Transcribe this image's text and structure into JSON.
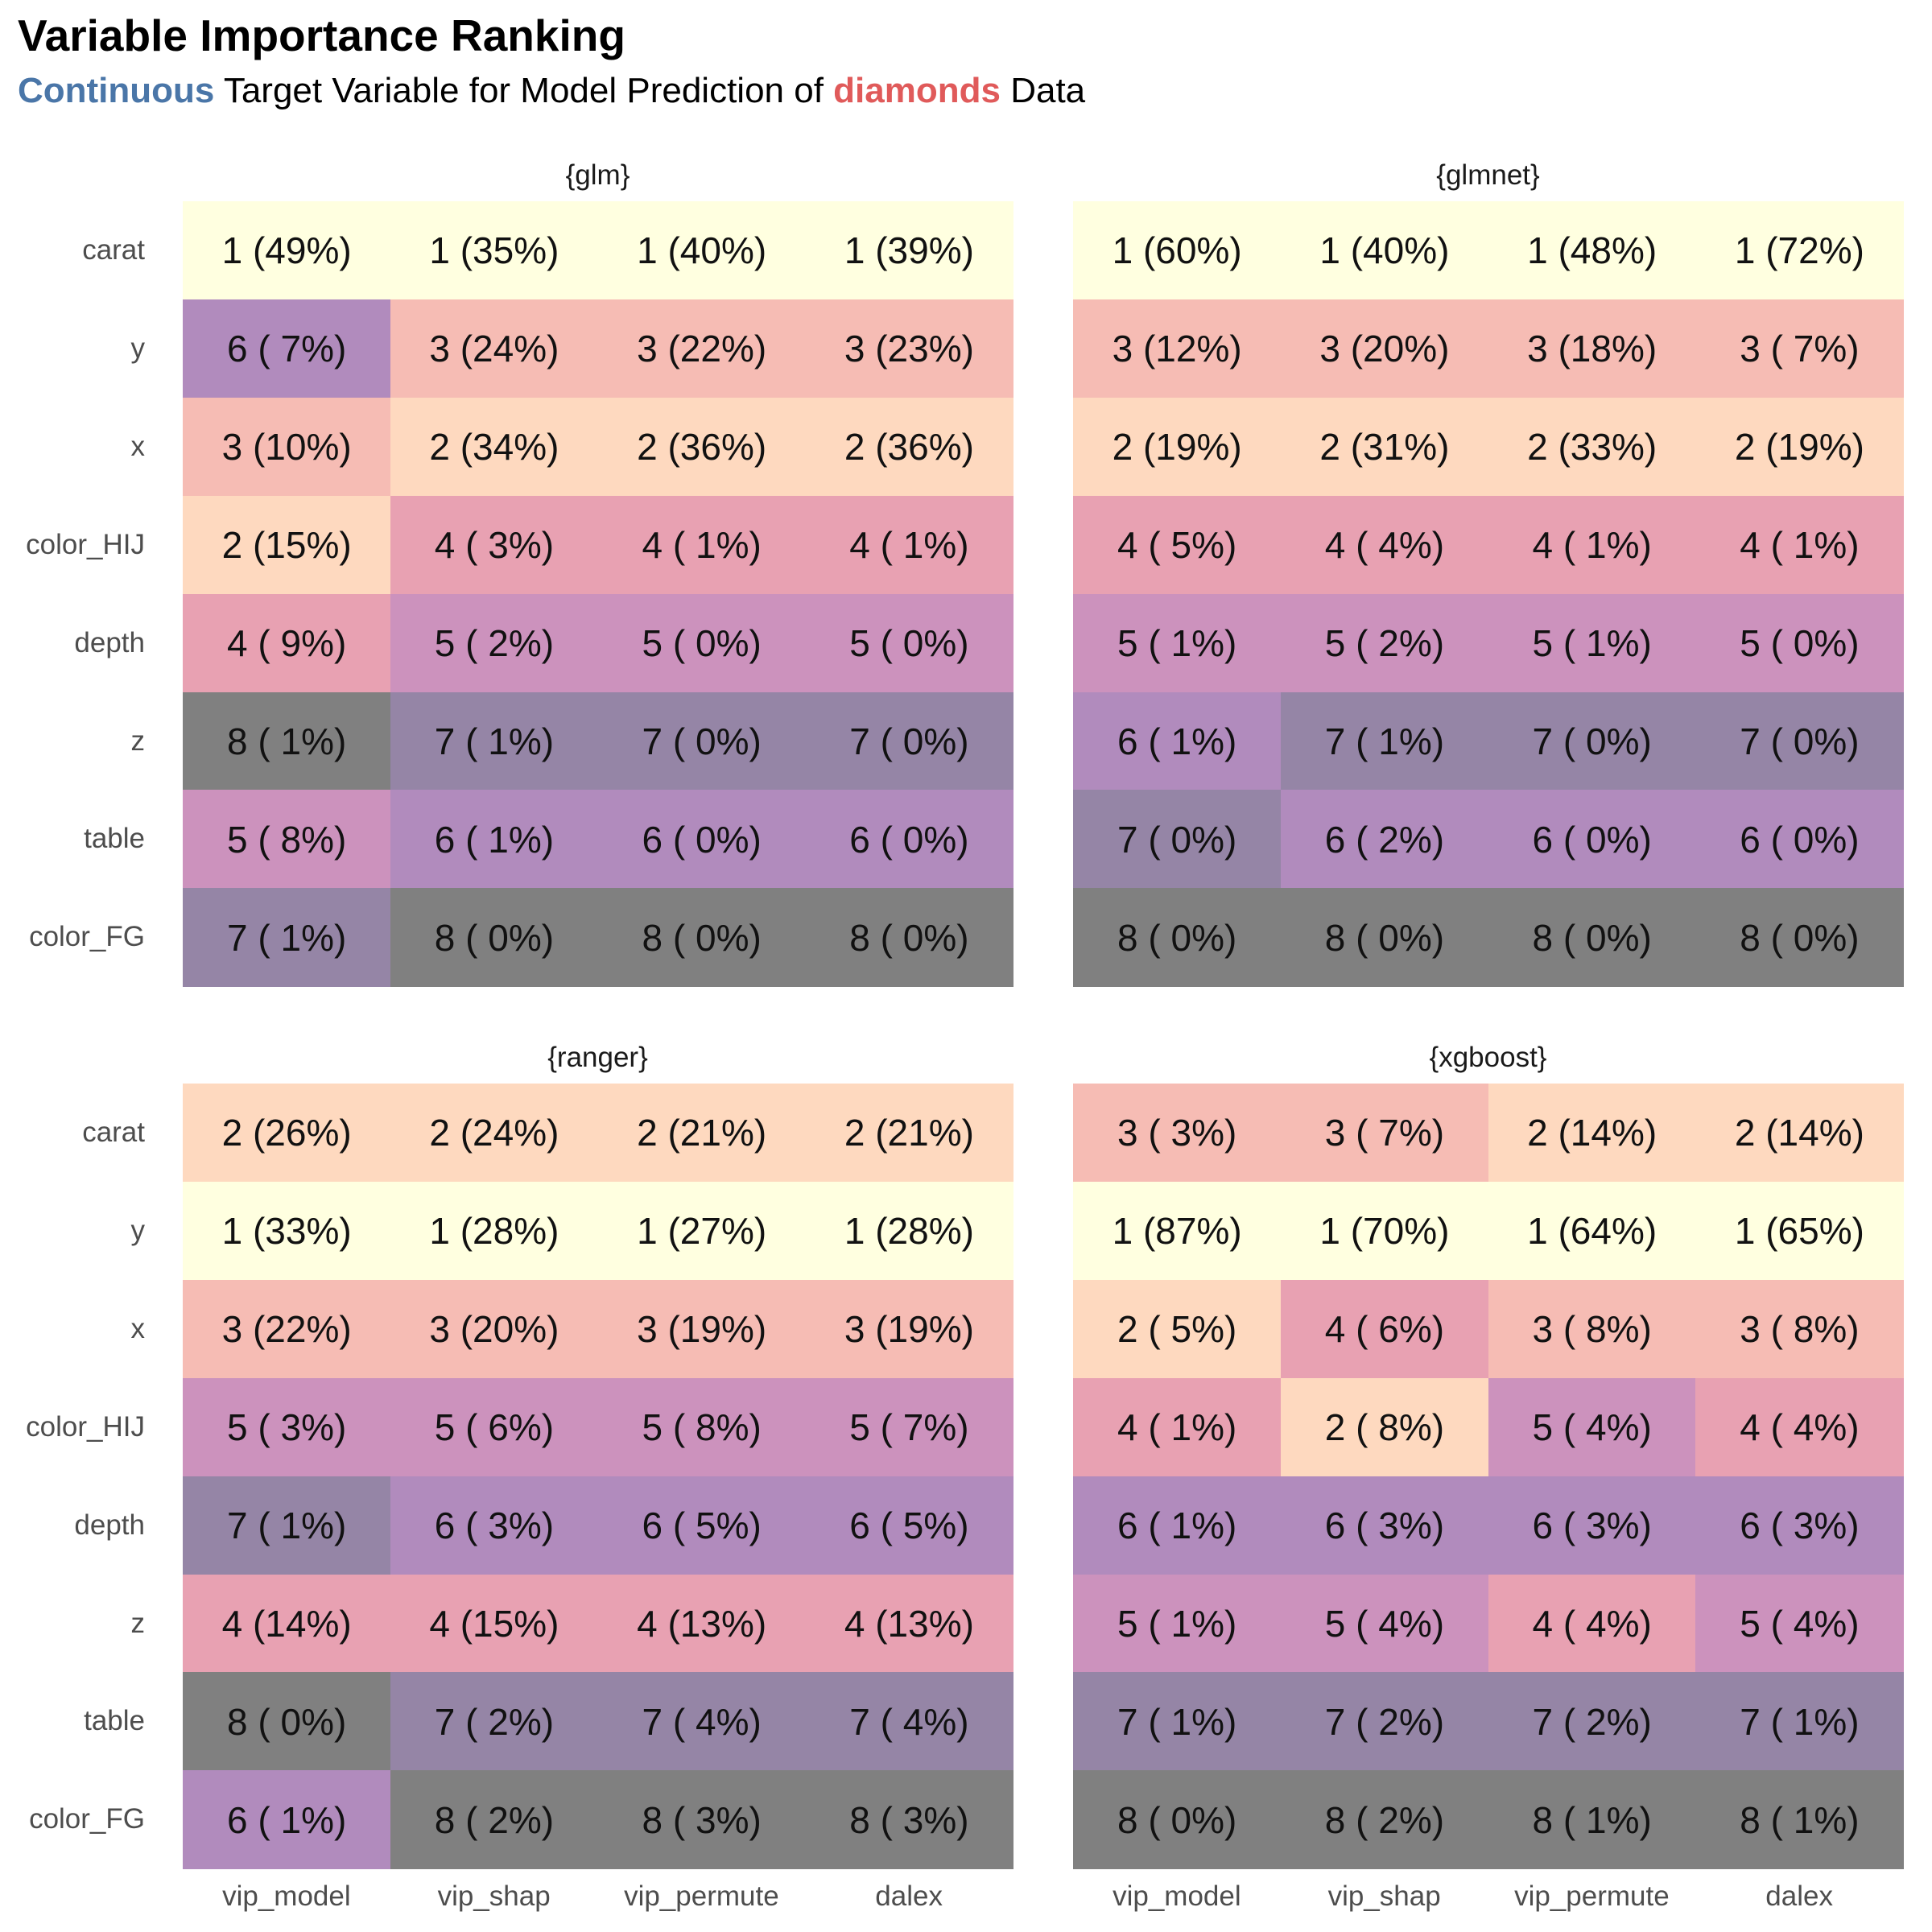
{
  "title": "Variable Importance Ranking",
  "subtitle": {
    "part1": "Continuous",
    "part2": " Target Variable for Model Prediction of ",
    "part3": "diamonds",
    "part4": " Data"
  },
  "colors": {
    "continuous": "#4a76a8",
    "diamonds": "#e05a5a",
    "rank1": "#ffffe0",
    "rank2": "#fed9bf",
    "rank3": "#f6bcb4",
    "rank4": "#e8a1b2",
    "rank5": "#cc92bd",
    "rank6": "#b18bbd",
    "rank7": "#9585a6",
    "rank8": "#808080"
  },
  "chart_data": {
    "type": "heatmap",
    "x_categories": [
      "vip_model",
      "vip_shap",
      "vip_permute",
      "dalex"
    ],
    "panels": [
      {
        "name": "{glm}",
        "variables": [
          "carat",
          "y",
          "x",
          "color_HIJ",
          "depth",
          "z",
          "table",
          "color_FG"
        ],
        "ranks": [
          [
            1,
            1,
            1,
            1
          ],
          [
            6,
            3,
            3,
            3
          ],
          [
            3,
            2,
            2,
            2
          ],
          [
            2,
            4,
            4,
            4
          ],
          [
            4,
            5,
            5,
            5
          ],
          [
            8,
            7,
            7,
            7
          ],
          [
            5,
            6,
            6,
            6
          ],
          [
            7,
            8,
            8,
            8
          ]
        ],
        "labels": [
          [
            "1 (49%)",
            "1 (35%)",
            "1 (40%)",
            "1 (39%)"
          ],
          [
            "6 ( 7%)",
            "3 (24%)",
            "3 (22%)",
            "3 (23%)"
          ],
          [
            "3 (10%)",
            "2 (34%)",
            "2 (36%)",
            "2 (36%)"
          ],
          [
            "2 (15%)",
            "4 ( 3%)",
            "4 ( 1%)",
            "4 ( 1%)"
          ],
          [
            "4 ( 9%)",
            "5 ( 2%)",
            "5 ( 0%)",
            "5 ( 0%)"
          ],
          [
            "8 ( 1%)",
            "7 ( 1%)",
            "7 ( 0%)",
            "7 ( 0%)"
          ],
          [
            "5 ( 8%)",
            "6 ( 1%)",
            "6 ( 0%)",
            "6 ( 0%)"
          ],
          [
            "7 ( 1%)",
            "8 ( 0%)",
            "8 ( 0%)",
            "8 ( 0%)"
          ]
        ]
      },
      {
        "name": "{glmnet}",
        "variables": [
          "carat",
          "y",
          "x",
          "color_HIJ",
          "depth",
          "z",
          "table",
          "color_FG"
        ],
        "ranks": [
          [
            1,
            1,
            1,
            1
          ],
          [
            3,
            3,
            3,
            3
          ],
          [
            2,
            2,
            2,
            2
          ],
          [
            4,
            4,
            4,
            4
          ],
          [
            5,
            5,
            5,
            5
          ],
          [
            6,
            7,
            7,
            7
          ],
          [
            7,
            6,
            6,
            6
          ],
          [
            8,
            8,
            8,
            8
          ]
        ],
        "labels": [
          [
            "1 (60%)",
            "1 (40%)",
            "1 (48%)",
            "1 (72%)"
          ],
          [
            "3 (12%)",
            "3 (20%)",
            "3 (18%)",
            "3 ( 7%)"
          ],
          [
            "2 (19%)",
            "2 (31%)",
            "2 (33%)",
            "2 (19%)"
          ],
          [
            "4 ( 5%)",
            "4 ( 4%)",
            "4 ( 1%)",
            "4 ( 1%)"
          ],
          [
            "5 ( 1%)",
            "5 ( 2%)",
            "5 ( 1%)",
            "5 ( 0%)"
          ],
          [
            "6 ( 1%)",
            "7 ( 1%)",
            "7 ( 0%)",
            "7 ( 0%)"
          ],
          [
            "7 ( 0%)",
            "6 ( 2%)",
            "6 ( 0%)",
            "6 ( 0%)"
          ],
          [
            "8 ( 0%)",
            "8 ( 0%)",
            "8 ( 0%)",
            "8 ( 0%)"
          ]
        ]
      },
      {
        "name": "{ranger}",
        "variables": [
          "carat",
          "y",
          "x",
          "color_HIJ",
          "depth",
          "z",
          "table",
          "color_FG"
        ],
        "ranks": [
          [
            2,
            2,
            2,
            2
          ],
          [
            1,
            1,
            1,
            1
          ],
          [
            3,
            3,
            3,
            3
          ],
          [
            5,
            5,
            5,
            5
          ],
          [
            7,
            6,
            6,
            6
          ],
          [
            4,
            4,
            4,
            4
          ],
          [
            8,
            7,
            7,
            7
          ],
          [
            6,
            8,
            8,
            8
          ]
        ],
        "labels": [
          [
            "2 (26%)",
            "2 (24%)",
            "2 (21%)",
            "2 (21%)"
          ],
          [
            "1 (33%)",
            "1 (28%)",
            "1 (27%)",
            "1 (28%)"
          ],
          [
            "3 (22%)",
            "3 (20%)",
            "3 (19%)",
            "3 (19%)"
          ],
          [
            "5 ( 3%)",
            "5 ( 6%)",
            "5 ( 8%)",
            "5 ( 7%)"
          ],
          [
            "7 ( 1%)",
            "6 ( 3%)",
            "6 ( 5%)",
            "6 ( 5%)"
          ],
          [
            "4 (14%)",
            "4 (15%)",
            "4 (13%)",
            "4 (13%)"
          ],
          [
            "8 ( 0%)",
            "7 ( 2%)",
            "7 ( 4%)",
            "7 ( 4%)"
          ],
          [
            "6 ( 1%)",
            "8 ( 2%)",
            "8 ( 3%)",
            "8 ( 3%)"
          ]
        ]
      },
      {
        "name": "{xgboost}",
        "variables": [
          "carat",
          "y",
          "x",
          "color_HIJ",
          "depth",
          "z",
          "table",
          "color_FG"
        ],
        "ranks": [
          [
            3,
            3,
            2,
            2
          ],
          [
            1,
            1,
            1,
            1
          ],
          [
            2,
            4,
            3,
            3
          ],
          [
            4,
            2,
            5,
            4
          ],
          [
            6,
            6,
            6,
            6
          ],
          [
            5,
            5,
            4,
            5
          ],
          [
            7,
            7,
            7,
            7
          ],
          [
            8,
            8,
            8,
            8
          ]
        ],
        "labels": [
          [
            "3 ( 3%)",
            "3 ( 7%)",
            "2 (14%)",
            "2 (14%)"
          ],
          [
            "1 (87%)",
            "1 (70%)",
            "1 (64%)",
            "1 (65%)"
          ],
          [
            "2 ( 5%)",
            "4 ( 6%)",
            "3 ( 8%)",
            "3 ( 8%)"
          ],
          [
            "4 ( 1%)",
            "2 ( 8%)",
            "5 ( 4%)",
            "4 ( 4%)"
          ],
          [
            "6 ( 1%)",
            "6 ( 3%)",
            "6 ( 3%)",
            "6 ( 3%)"
          ],
          [
            "5 ( 1%)",
            "5 ( 4%)",
            "4 ( 4%)",
            "5 ( 4%)"
          ],
          [
            "7 ( 1%)",
            "7 ( 2%)",
            "7 ( 2%)",
            "7 ( 1%)"
          ],
          [
            "8 ( 0%)",
            "8 ( 2%)",
            "8 ( 1%)",
            "8 ( 1%)"
          ]
        ]
      }
    ]
  }
}
